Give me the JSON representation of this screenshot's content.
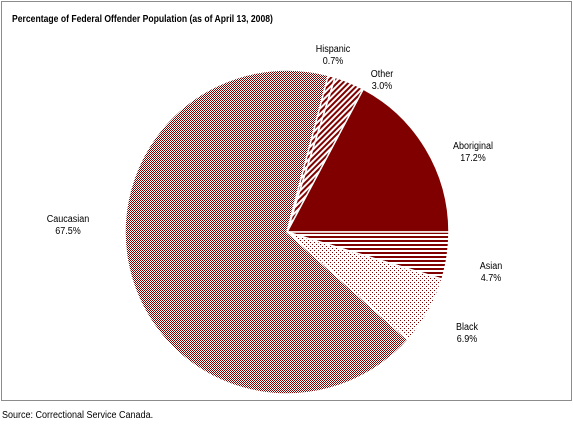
{
  "chart_data": {
    "type": "pie",
    "title": "Percentage of Federal Offender Population (as of April 13, 2008)",
    "slices": [
      {
        "name": "Aboriginal",
        "value": 17.2,
        "value_label": "17.2%",
        "fill": "solid",
        "color": "#800000"
      },
      {
        "name": "Asian",
        "value": 4.7,
        "value_label": "4.7%",
        "fill": "stripes",
        "color": "#800000"
      },
      {
        "name": "Black",
        "value": 6.9,
        "value_label": "6.9%",
        "fill": "dots",
        "color": "#800000"
      },
      {
        "name": "Caucasian",
        "value": 67.5,
        "value_label": "67.5%",
        "fill": "fine-dots",
        "color": "#800000"
      },
      {
        "name": "Hispanic",
        "value": 0.7,
        "value_label": "0.7%",
        "fill": "diagonal-stripes",
        "color": "#800000"
      },
      {
        "name": "Other",
        "value": 3.0,
        "value_label": "3.0%",
        "fill": "diagonal-stripes",
        "color": "#800000"
      }
    ]
  },
  "source": "Source:  Correctional Service Canada."
}
